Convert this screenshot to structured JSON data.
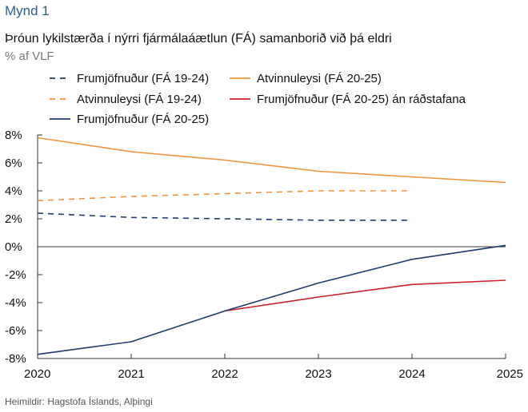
{
  "figure_label": "Mynd 1",
  "source": "Heimildir: Hagstofa Íslands, Alþingi",
  "chart_data": {
    "type": "line",
    "title": "Þróun lykilstærða í nýrri fjármálaáætlun (FÁ) samanborið við þá eldri",
    "subtitle": "% af VLF",
    "x": [
      2020,
      2021,
      2022,
      2023,
      2024,
      2025
    ],
    "x_tick_labels": [
      "2020",
      "2021",
      "2022",
      "2023",
      "2024",
      "2025"
    ],
    "ylim": [
      -8,
      8
    ],
    "y_ticks": [
      8,
      6,
      4,
      2,
      0,
      -2,
      -4,
      -6,
      -8
    ],
    "y_tick_labels": [
      "8%",
      "6%",
      "4%",
      "2%",
      "0%",
      "-2%",
      "-4%",
      "-6%",
      "-8%"
    ],
    "grid": false,
    "legend_position": "top",
    "series": [
      {
        "name": "Frumjöfnuður (FÁ 19-24)",
        "color": "#1f3a6e",
        "dash": true,
        "values": [
          2.4,
          2.1,
          2.0,
          1.9,
          1.9,
          null
        ]
      },
      {
        "name": "Atvinnuleysi (FÁ 19-24)",
        "color": "#f0943c",
        "dash": true,
        "values": [
          3.3,
          3.6,
          3.8,
          4.0,
          4.0,
          null
        ]
      },
      {
        "name": "Frumjöfnuður (FÁ 20-25)",
        "color": "#1f3a6e",
        "dash": false,
        "values": [
          -7.7,
          -6.8,
          -4.6,
          -2.6,
          -0.9,
          0.1
        ]
      },
      {
        "name": "Atvinnuleysi (FÁ 20-25)",
        "color": "#f0943c",
        "dash": false,
        "values": [
          7.8,
          6.8,
          6.2,
          5.4,
          5.0,
          4.6
        ]
      },
      {
        "name": "Frumjöfnuður (FÁ 20-25) án ráðstafana",
        "color": "#cc1f2b",
        "dash": false,
        "values": [
          null,
          null,
          -4.6,
          -3.6,
          -2.7,
          -2.4
        ]
      }
    ]
  }
}
